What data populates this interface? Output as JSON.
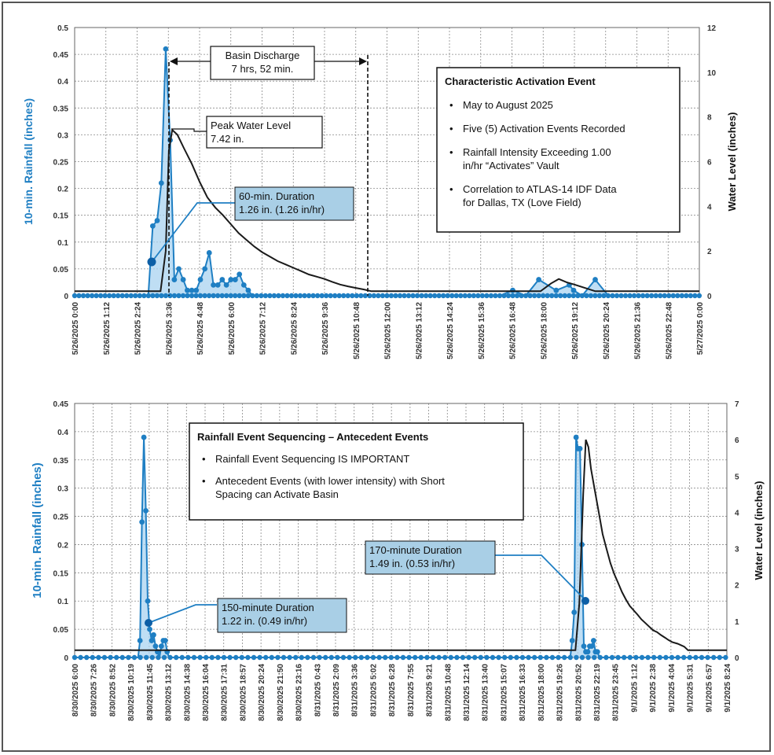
{
  "colors": {
    "rain": "#1f7fc3",
    "rain_fill": "#a9d3f0",
    "level": "#1a1a1a",
    "grid": "#8a8a8a",
    "callout_fill": "#a9cfe6"
  },
  "chart_data": [
    {
      "type": "line",
      "ylabel": "10-min. Rainfall (inches)",
      "y2label": "Water Level (inches)",
      "ylim": [
        0,
        0.5
      ],
      "y_ticks": [
        "0",
        "0.05",
        "0.1",
        "0.15",
        "0.2",
        "0.25",
        "0.3",
        "0.35",
        "0.4",
        "0.45",
        "0.5"
      ],
      "y2lim": [
        0,
        12
      ],
      "y2_ticks": [
        "0",
        "2",
        "4",
        "6",
        "8",
        "10",
        "12"
      ],
      "x_ticks": [
        "5/26/2025 0:00",
        "5/26/2025 1:12",
        "5/26/2025 2:24",
        "5/26/2025 3:36",
        "5/26/2025 4:48",
        "5/26/2025 6:00",
        "5/26/2025 7:12",
        "5/26/2025 8:24",
        "5/26/2025 9:36",
        "5/26/2025 10:48",
        "5/26/2025 12:00",
        "5/26/2025 13:12",
        "5/26/2025 14:24",
        "5/26/2025 15:36",
        "5/26/2025 16:48",
        "5/26/2025 18:00",
        "5/26/2025 19:12",
        "5/26/2025 20:24",
        "5/26/2025 21:36",
        "5/26/2025 22:48",
        "5/27/2025 0:00"
      ],
      "grid": true,
      "series": [
        {
          "name": "10-min. Rainfall (inches)",
          "axis": "left",
          "x_hours": [
            0,
            2.83,
            3.0,
            3.17,
            3.33,
            3.5,
            3.67,
            3.83,
            4.0,
            4.17,
            4.33,
            4.5,
            4.67,
            4.83,
            5.0,
            5.17,
            5.33,
            5.5,
            5.67,
            5.83,
            6.0,
            6.17,
            6.33,
            6.5,
            6.67,
            6.83,
            16.33,
            16.83,
            17.33,
            17.83,
            18.5,
            19.0,
            19.17,
            19.5,
            20.0,
            20.5,
            20.67
          ],
          "values": [
            0,
            0,
            0.13,
            0.14,
            0.21,
            0.46,
            0.29,
            0.03,
            0.05,
            0.03,
            0.01,
            0.01,
            0.01,
            0.03,
            0.05,
            0.08,
            0.02,
            0.02,
            0.03,
            0.02,
            0.03,
            0.03,
            0.04,
            0.02,
            0.01,
            0,
            0,
            0.01,
            0,
            0.03,
            0.01,
            0.02,
            0.01,
            0,
            0.03,
            0,
            0
          ]
        },
        {
          "name": "Water Level (inches)",
          "axis": "right",
          "x_hours": [
            0,
            2.83,
            3.3,
            3.5,
            3.62,
            3.75,
            3.95,
            4.2,
            4.5,
            4.8,
            5.1,
            5.4,
            5.7,
            6.0,
            6.3,
            6.6,
            6.9,
            7.2,
            7.5,
            7.8,
            8.1,
            8.4,
            8.7,
            9.0,
            9.3,
            9.6,
            9.9,
            10.2,
            10.5,
            10.8,
            11.1,
            11.4,
            12.0,
            14.0,
            16.0,
            17.9,
            18.3,
            18.6,
            18.9,
            19.2,
            19.6,
            20.0,
            24.0
          ],
          "values": [
            0.2,
            0.2,
            0.2,
            2.0,
            6.5,
            7.42,
            7.2,
            6.6,
            5.9,
            5.1,
            4.4,
            3.95,
            3.6,
            3.2,
            2.8,
            2.5,
            2.2,
            1.95,
            1.75,
            1.55,
            1.4,
            1.25,
            1.1,
            0.95,
            0.85,
            0.75,
            0.62,
            0.5,
            0.42,
            0.35,
            0.28,
            0.2,
            0.2,
            0.2,
            0.2,
            0.2,
            0.55,
            0.75,
            0.6,
            0.5,
            0.35,
            0.2,
            0.2
          ]
        }
      ],
      "annotations": [
        {
          "text": "Basin Discharge",
          "text2": "7 hrs, 52 min."
        },
        {
          "text": "Peak Water Level",
          "text2": "7.42 in."
        },
        {
          "text": "60-min. Duration",
          "text2": "1.26 in. (1.26 in/hr)"
        }
      ],
      "info_box": {
        "title": "Characteristic Activation Event",
        "bullets": [
          [
            "May to August 2025"
          ],
          [
            "Five (5) Activation Events Recorded"
          ],
          [
            "Rainfall Intensity Exceeding 1.00",
            "in/hr “Activates” Vault"
          ],
          [
            "Correlation to ATLAS-14 IDF Data",
            "for Dallas, TX (Love Field)"
          ]
        ]
      }
    },
    {
      "type": "line",
      "ylabel": "10-min. Rainfall (inches)",
      "y2label": "Water Level (inches)",
      "ylim": [
        0,
        0.45
      ],
      "y_ticks": [
        "0",
        "0.05",
        "0.1",
        "0.15",
        "0.2",
        "0.25",
        "0.3",
        "0.35",
        "0.4",
        "0.45"
      ],
      "y2lim": [
        0,
        7
      ],
      "y2_ticks": [
        "0",
        "1",
        "2",
        "3",
        "4",
        "5",
        "6",
        "7"
      ],
      "x_ticks": [
        "8/30/2025 6:00",
        "8/30/2025 7:26",
        "8/30/2025 8:52",
        "8/30/2025 10:19",
        "8/30/2025 11:45",
        "8/30/2025 13:12",
        "8/30/2025 14:38",
        "8/30/2025 16:04",
        "8/30/2025 17:31",
        "8/30/2025 18:57",
        "8/30/2025 20:24",
        "8/30/2025 21:50",
        "8/30/2025 23:16",
        "8/31/2025 0:43",
        "8/31/2025 2:09",
        "8/31/2025 3:36",
        "8/31/2025 5:02",
        "8/31/2025 6:28",
        "8/31/2025 7:55",
        "8/31/2025 9:21",
        "8/31/2025 10:48",
        "8/31/2025 12:14",
        "8/31/2025 13:40",
        "8/31/2025 15:07",
        "8/31/2025 16:33",
        "8/31/2025 18:00",
        "8/31/2025 19:26",
        "8/31/2025 20:52",
        "8/31/2025 22:19",
        "8/31/2025 23:45",
        "9/1/2025 1:12",
        "9/1/2025 2:38",
        "9/1/2025 4:04",
        "9/1/2025 5:31",
        "9/1/2025 6:57",
        "9/1/2025 8:24"
      ],
      "grid": true,
      "series": [
        {
          "name": "10-min. Rainfall (inches)",
          "axis": "left",
          "x_hours": [
            0,
            4.9,
            5.05,
            5.2,
            5.35,
            5.5,
            5.65,
            5.8,
            5.95,
            6.1,
            6.25,
            6.4,
            6.55,
            6.7,
            6.85,
            7.0,
            7.15,
            7.3,
            38.3,
            38.45,
            38.6,
            38.75,
            38.9,
            39.05,
            39.2,
            39.35,
            39.5,
            39.65,
            39.8,
            39.95,
            40.1,
            40.25,
            40.4,
            40.55,
            40.7,
            48.0,
            50.4
          ],
          "values": [
            0,
            0,
            0.03,
            0.24,
            0.39,
            0.26,
            0.1,
            0.05,
            0.03,
            0.04,
            0.02,
            0.01,
            0.0,
            0.02,
            0.03,
            0.03,
            0.01,
            0,
            0,
            0.03,
            0.08,
            0.39,
            0.37,
            0.37,
            0.2,
            0.02,
            0.01,
            0.01,
            0.02,
            0.02,
            0.03,
            0.01,
            0.01,
            0,
            0,
            0,
            0
          ]
        },
        {
          "name": "Water Level (inches)",
          "axis": "right",
          "x_hours": [
            0,
            38.7,
            39.0,
            39.3,
            39.5,
            39.7,
            39.9,
            40.2,
            40.5,
            40.8,
            41.1,
            41.4,
            41.7,
            42.0,
            42.3,
            42.6,
            42.9,
            43.2,
            43.5,
            43.8,
            44.1,
            44.4,
            44.7,
            45.0,
            45.3,
            45.6,
            45.9,
            46.2,
            46.6,
            47.1,
            47.4,
            50.4
          ],
          "values": [
            0.2,
            0.2,
            1.5,
            4.5,
            6.0,
            5.8,
            5.2,
            4.6,
            4.0,
            3.4,
            3.0,
            2.6,
            2.3,
            2.05,
            1.8,
            1.6,
            1.42,
            1.3,
            1.18,
            1.05,
            0.95,
            0.85,
            0.75,
            0.7,
            0.62,
            0.55,
            0.48,
            0.42,
            0.38,
            0.3,
            0.2,
            0.2
          ]
        }
      ],
      "annotations": [
        {
          "text": "150-minute Duration",
          "text2": "1.22 in. (0.49 in/hr)"
        },
        {
          "text": "170-minute Duration",
          "text2": "1.49 in. (0.53 in/hr)"
        }
      ],
      "info_box": {
        "title": "Rainfall Event Sequencing – Antecedent Events",
        "bullets": [
          [
            "Rainfall Event Sequencing IS IMPORTANT"
          ],
          [
            "Antecedent Events (with lower intensity) with Short",
            "Spacing can Activate Basin"
          ]
        ]
      }
    }
  ]
}
